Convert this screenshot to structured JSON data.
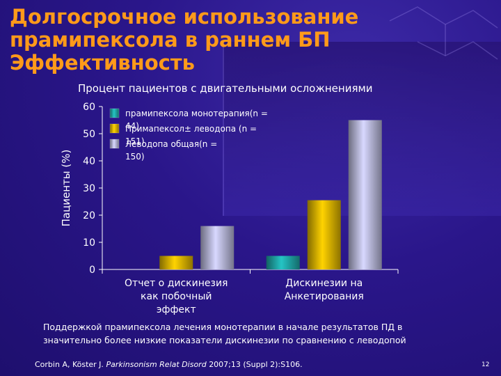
{
  "slide": {
    "title_lines": [
      "Долгосрочное использование",
      "прамипексола в раннем БП",
      "Эффективность"
    ],
    "page_number": "12",
    "footnote_lines": [
      "Поддержкой прамипексола лечения монотерапии в начале результатов ПД в",
      "значительно более низкие показатели дискинезии по сравнению с леводопой"
    ],
    "citation": {
      "authors": "Corbin A, Köster J.",
      "journal": "Parkinsonism Relat Disord",
      "ref": "2007;13 (Suppl 2):S106."
    }
  },
  "chart_data": {
    "type": "bar",
    "title": "Процент пациентов с двигательными осложнениями",
    "ylabel": "Пациенты (%)",
    "ylim": [
      0,
      60
    ],
    "yticks": [
      0,
      10,
      20,
      30,
      40,
      50,
      60
    ],
    "categories": [
      [
        "Отчет о дискинезия",
        "как побочный",
        "эффект"
      ],
      [
        "Дискинезии на",
        "Анкетирования"
      ]
    ],
    "series": [
      {
        "name": "прамипексола монотерапия(n = 44)",
        "legend_lines": [
          "прамипексола монотерапия(n =",
          "44)"
        ],
        "color": "#1fa3a3",
        "values": [
          0,
          5
        ]
      },
      {
        "name": "Примапексол± леводопа (n = 151)",
        "legend_lines": [
          "Примапексол± леводопа (n =",
          "151)"
        ],
        "color": "#d9b000",
        "values": [
          5,
          25.5
        ]
      },
      {
        "name": "Леводопа общая(n = 150)",
        "legend_lines": [
          "Леводопа общая(n =",
          "150)"
        ],
        "color": "#b4b4d6",
        "values": [
          16,
          55
        ]
      }
    ],
    "legend_position": "top-left",
    "grid": false
  }
}
